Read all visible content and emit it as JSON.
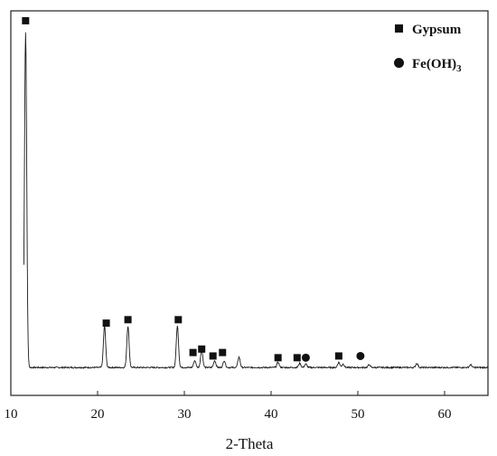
{
  "chart_data": {
    "type": "line",
    "title": "",
    "xlabel": "2-Theta",
    "ylabel": "",
    "xlim": [
      10,
      65
    ],
    "ylim": [
      0,
      1.0
    ],
    "x_ticks": [
      10,
      20,
      30,
      40,
      50,
      60
    ],
    "grid": false,
    "legend": {
      "placement": "top-right",
      "entries": [
        {
          "name": "Gypsum",
          "marker": "square"
        },
        {
          "name": "Fe(OH)",
          "subscript": "3",
          "marker": "circle"
        }
      ]
    },
    "series": [
      {
        "name": "pattern",
        "color": "#1a1a1a",
        "baseline": 0.01,
        "peaks": [
          {
            "x": 11.7,
            "h": 0.97
          },
          {
            "x": 20.8,
            "h": 0.12
          },
          {
            "x": 23.5,
            "h": 0.12
          },
          {
            "x": 29.2,
            "h": 0.12
          },
          {
            "x": 31.2,
            "h": 0.02
          },
          {
            "x": 32.0,
            "h": 0.05
          },
          {
            "x": 33.5,
            "h": 0.02
          },
          {
            "x": 34.6,
            "h": 0.02
          },
          {
            "x": 36.3,
            "h": 0.03
          },
          {
            "x": 40.8,
            "h": 0.015
          },
          {
            "x": 43.3,
            "h": 0.012
          },
          {
            "x": 44.0,
            "h": 0.01
          },
          {
            "x": 47.8,
            "h": 0.015
          },
          {
            "x": 48.3,
            "h": 0.01
          },
          {
            "x": 51.3,
            "h": 0.008
          },
          {
            "x": 56.8,
            "h": 0.012
          },
          {
            "x": 63.0,
            "h": 0.008
          }
        ]
      }
    ],
    "annotations": [
      {
        "marker": "square",
        "x": 11.7,
        "y": 0.995
      },
      {
        "marker": "square",
        "x": 21.0,
        "y": 0.12
      },
      {
        "marker": "square",
        "x": 23.5,
        "y": 0.13
      },
      {
        "marker": "square",
        "x": 29.3,
        "y": 0.13
      },
      {
        "marker": "square",
        "x": 31.0,
        "y": 0.035
      },
      {
        "marker": "square",
        "x": 32.0,
        "y": 0.045
      },
      {
        "marker": "square",
        "x": 33.3,
        "y": 0.025
      },
      {
        "marker": "square",
        "x": 34.4,
        "y": 0.035
      },
      {
        "marker": "square",
        "x": 40.8,
        "y": 0.02
      },
      {
        "marker": "square",
        "x": 43.0,
        "y": 0.02
      },
      {
        "marker": "circle",
        "x": 44.0,
        "y": 0.02
      },
      {
        "marker": "square",
        "x": 47.8,
        "y": 0.025
      },
      {
        "marker": "circle",
        "x": 50.3,
        "y": 0.025
      }
    ]
  }
}
